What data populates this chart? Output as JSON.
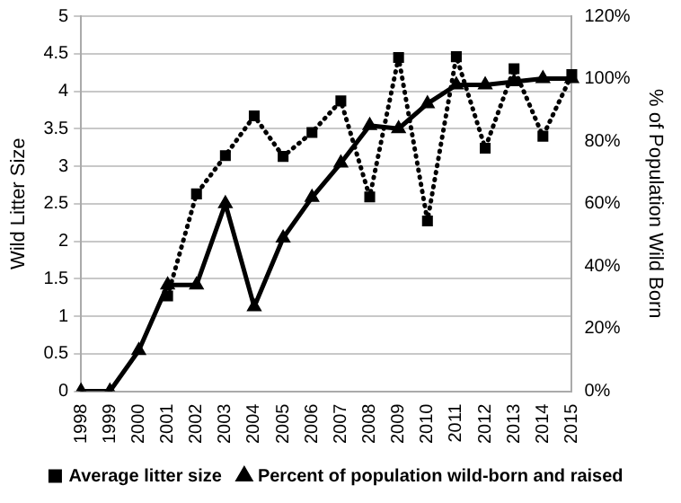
{
  "chart_data": {
    "type": "line",
    "ylabel": "Wild Litter Size",
    "y2label": "% of Population Wild Born",
    "categories": [
      "1998",
      "1999",
      "2000",
      "2001",
      "2002",
      "2003",
      "2004",
      "2005",
      "2006",
      "2007",
      "2008",
      "2009",
      "2010",
      "2011",
      "2012",
      "2013",
      "2014",
      "2015"
    ],
    "series": [
      {
        "name": "Average litter size",
        "color": "#000000",
        "marker": "square",
        "line_style": "dotted",
        "values": [
          null,
          null,
          null,
          1.27,
          2.63,
          3.14,
          3.67,
          3.13,
          3.45,
          3.87,
          2.59,
          4.45,
          2.27,
          4.46,
          3.24,
          4.3,
          3.4,
          4.22
        ]
      },
      {
        "name": "Percent of population wild-born and raised",
        "color": "#000000",
        "marker": "triangle",
        "line_style": "solid",
        "axis": "y2",
        "values": [
          0,
          0,
          13,
          34,
          34,
          60,
          27,
          49,
          62,
          73,
          85,
          84,
          92,
          98,
          98,
          99,
          100,
          100
        ]
      }
    ],
    "ylim": [
      0,
      5
    ],
    "yticks": [
      0,
      0.5,
      1,
      1.5,
      2,
      2.5,
      3,
      3.5,
      4,
      4.5,
      5
    ],
    "y2lim": [
      0,
      120
    ],
    "y2ticks": [
      {
        "value": 0,
        "label": "0%"
      },
      {
        "value": 20,
        "label": "20%"
      },
      {
        "value": 40,
        "label": "40%"
      },
      {
        "value": 60,
        "label": "60%"
      },
      {
        "value": 80,
        "label": "80%"
      },
      {
        "value": 100,
        "label": "100%"
      },
      {
        "value": 120,
        "label": "120%"
      }
    ],
    "grid": "y",
    "legend": "bottom"
  }
}
